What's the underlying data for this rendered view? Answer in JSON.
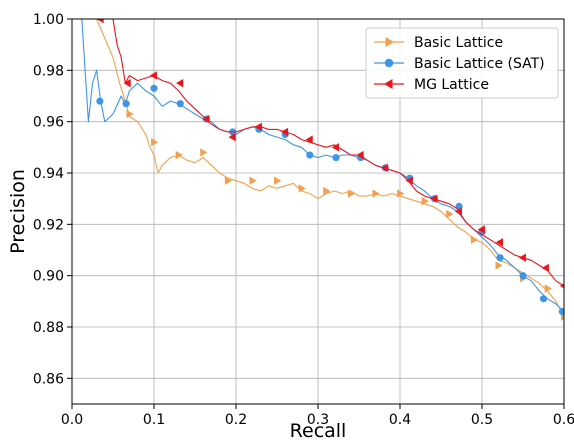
{
  "chart_data": {
    "type": "line",
    "xlabel": "Recall",
    "ylabel": "Precision",
    "xlim": [
      0.0,
      0.6
    ],
    "ylim": [
      0.85,
      1.0
    ],
    "xticks": [
      "0.0",
      "0.1",
      "0.2",
      "0.3",
      "0.4",
      "0.5",
      "0.6"
    ],
    "yticks": [
      "0.86",
      "0.88",
      "0.90",
      "0.92",
      "0.94",
      "0.96",
      "0.98",
      "1.00"
    ],
    "grid": true,
    "legend_position": "top-right",
    "series": [
      {
        "name": "Basic Lattice",
        "color": "#f0a050",
        "marker": "triangle-right",
        "x": [
          0.03,
          0.05,
          0.058,
          0.065,
          0.07,
          0.08,
          0.09,
          0.095,
          0.1,
          0.105,
          0.11,
          0.12,
          0.13,
          0.14,
          0.15,
          0.16,
          0.17,
          0.18,
          0.19,
          0.2,
          0.21,
          0.22,
          0.23,
          0.24,
          0.25,
          0.26,
          0.27,
          0.28,
          0.29,
          0.3,
          0.31,
          0.32,
          0.33,
          0.34,
          0.35,
          0.36,
          0.37,
          0.38,
          0.39,
          0.4,
          0.41,
          0.42,
          0.43,
          0.44,
          0.45,
          0.46,
          0.47,
          0.48,
          0.49,
          0.5,
          0.51,
          0.52,
          0.53,
          0.54,
          0.55,
          0.56,
          0.57,
          0.58,
          0.59,
          0.6
        ],
        "y": [
          1.0,
          0.985,
          0.975,
          0.968,
          0.962,
          0.96,
          0.955,
          0.95,
          0.947,
          0.94,
          0.943,
          0.946,
          0.947,
          0.945,
          0.944,
          0.946,
          0.943,
          0.94,
          0.938,
          0.937,
          0.936,
          0.934,
          0.933,
          0.935,
          0.934,
          0.935,
          0.936,
          0.933,
          0.932,
          0.93,
          0.932,
          0.933,
          0.932,
          0.933,
          0.931,
          0.931,
          0.932,
          0.931,
          0.932,
          0.931,
          0.93,
          0.929,
          0.928,
          0.927,
          0.925,
          0.922,
          0.919,
          0.917,
          0.914,
          0.913,
          0.91,
          0.906,
          0.905,
          0.903,
          0.901,
          0.899,
          0.897,
          0.894,
          0.89,
          0.884
        ],
        "markers": [
          [
            0.07,
            0.963
          ],
          [
            0.1,
            0.952
          ],
          [
            0.13,
            0.947
          ],
          [
            0.16,
            0.948
          ],
          [
            0.19,
            0.937
          ],
          [
            0.22,
            0.937
          ],
          [
            0.25,
            0.937
          ],
          [
            0.28,
            0.934
          ],
          [
            0.31,
            0.933
          ],
          [
            0.34,
            0.932
          ],
          [
            0.37,
            0.932
          ],
          [
            0.4,
            0.932
          ],
          [
            0.43,
            0.929
          ],
          [
            0.46,
            0.924
          ],
          [
            0.49,
            0.914
          ],
          [
            0.52,
            0.904
          ],
          [
            0.55,
            0.899
          ],
          [
            0.58,
            0.895
          ],
          [
            0.6,
            0.884
          ]
        ]
      },
      {
        "name": "Basic Lattice (SAT)",
        "color": "#3d95e8",
        "marker": "circle",
        "x": [
          0.012,
          0.02,
          0.025,
          0.03,
          0.035,
          0.04,
          0.05,
          0.06,
          0.065,
          0.07,
          0.08,
          0.09,
          0.1,
          0.11,
          0.12,
          0.13,
          0.14,
          0.15,
          0.16,
          0.17,
          0.18,
          0.19,
          0.2,
          0.21,
          0.22,
          0.23,
          0.24,
          0.25,
          0.26,
          0.27,
          0.28,
          0.29,
          0.3,
          0.31,
          0.32,
          0.33,
          0.34,
          0.35,
          0.36,
          0.37,
          0.38,
          0.39,
          0.4,
          0.41,
          0.42,
          0.43,
          0.44,
          0.45,
          0.46,
          0.47,
          0.48,
          0.49,
          0.5,
          0.51,
          0.52,
          0.53,
          0.54,
          0.55,
          0.56,
          0.57,
          0.58,
          0.59,
          0.6
        ],
        "y": [
          1.0,
          0.96,
          0.975,
          0.98,
          0.968,
          0.96,
          0.963,
          0.97,
          0.967,
          0.972,
          0.975,
          0.972,
          0.97,
          0.966,
          0.968,
          0.967,
          0.965,
          0.963,
          0.961,
          0.96,
          0.957,
          0.956,
          0.955,
          0.957,
          0.958,
          0.957,
          0.955,
          0.954,
          0.953,
          0.951,
          0.95,
          0.947,
          0.946,
          0.947,
          0.946,
          0.947,
          0.947,
          0.946,
          0.945,
          0.943,
          0.942,
          0.941,
          0.94,
          0.938,
          0.935,
          0.933,
          0.93,
          0.928,
          0.927,
          0.925,
          0.921,
          0.918,
          0.915,
          0.912,
          0.908,
          0.906,
          0.903,
          0.9,
          0.898,
          0.894,
          0.891,
          0.889,
          0.886
        ],
        "markers": [
          [
            0.034,
            0.968
          ],
          [
            0.066,
            0.967
          ],
          [
            0.1,
            0.973
          ],
          [
            0.132,
            0.967
          ],
          [
            0.164,
            0.961
          ],
          [
            0.196,
            0.956
          ],
          [
            0.228,
            0.957
          ],
          [
            0.26,
            0.955
          ],
          [
            0.29,
            0.947
          ],
          [
            0.322,
            0.946
          ],
          [
            0.352,
            0.946
          ],
          [
            0.382,
            0.942
          ],
          [
            0.412,
            0.938
          ],
          [
            0.442,
            0.93
          ],
          [
            0.472,
            0.927
          ],
          [
            0.5,
            0.917
          ],
          [
            0.522,
            0.907
          ],
          [
            0.55,
            0.9
          ],
          [
            0.575,
            0.891
          ],
          [
            0.598,
            0.886
          ]
        ]
      },
      {
        "name": "MG Lattice",
        "color": "#e8161b",
        "marker": "triangle-left",
        "x": [
          0.032,
          0.05,
          0.055,
          0.06,
          0.065,
          0.07,
          0.08,
          0.09,
          0.1,
          0.11,
          0.12,
          0.13,
          0.14,
          0.15,
          0.16,
          0.17,
          0.18,
          0.19,
          0.2,
          0.21,
          0.22,
          0.23,
          0.24,
          0.25,
          0.26,
          0.27,
          0.28,
          0.29,
          0.3,
          0.31,
          0.32,
          0.33,
          0.34,
          0.35,
          0.36,
          0.37,
          0.38,
          0.39,
          0.4,
          0.41,
          0.42,
          0.43,
          0.44,
          0.45,
          0.46,
          0.47,
          0.48,
          0.49,
          0.5,
          0.51,
          0.52,
          0.53,
          0.54,
          0.55,
          0.56,
          0.57,
          0.58,
          0.59,
          0.6
        ],
        "y": [
          1.0,
          1.0,
          0.99,
          0.985,
          0.975,
          0.978,
          0.976,
          0.977,
          0.978,
          0.976,
          0.975,
          0.972,
          0.968,
          0.965,
          0.962,
          0.959,
          0.957,
          0.956,
          0.956,
          0.957,
          0.958,
          0.958,
          0.957,
          0.957,
          0.956,
          0.955,
          0.953,
          0.952,
          0.951,
          0.95,
          0.951,
          0.949,
          0.947,
          0.947,
          0.945,
          0.943,
          0.942,
          0.941,
          0.94,
          0.937,
          0.933,
          0.931,
          0.93,
          0.929,
          0.928,
          0.926,
          0.921,
          0.918,
          0.916,
          0.914,
          0.912,
          0.91,
          0.908,
          0.907,
          0.906,
          0.904,
          0.902,
          0.898,
          0.896
        ],
        "markers": [
          [
            0.035,
            1.0
          ],
          [
            0.068,
            0.975
          ],
          [
            0.1,
            0.978
          ],
          [
            0.132,
            0.975
          ],
          [
            0.164,
            0.961
          ],
          [
            0.196,
            0.954
          ],
          [
            0.228,
            0.958
          ],
          [
            0.26,
            0.956
          ],
          [
            0.29,
            0.953
          ],
          [
            0.322,
            0.95
          ],
          [
            0.352,
            0.947
          ],
          [
            0.382,
            0.942
          ],
          [
            0.412,
            0.937
          ],
          [
            0.442,
            0.93
          ],
          [
            0.472,
            0.925
          ],
          [
            0.5,
            0.918
          ],
          [
            0.522,
            0.913
          ],
          [
            0.55,
            0.907
          ],
          [
            0.578,
            0.903
          ],
          [
            0.6,
            0.896
          ]
        ]
      }
    ]
  }
}
